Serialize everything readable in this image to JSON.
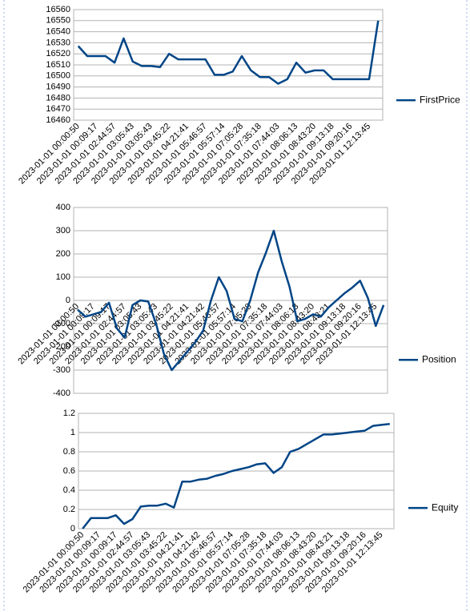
{
  "chart_data": [
    {
      "type": "line",
      "categories": [
        "2023-01-01 00:00:50",
        null,
        "2023-01-01 00:09:17",
        null,
        "2023-01-01 02:44:57",
        null,
        "2023-01-01 03:05:43",
        null,
        "2023-01-01 03:05:43",
        null,
        "2023-01-01 03:45:22",
        null,
        "2023-01-01 04:21:41",
        null,
        "2023-01-01 05:46:57",
        null,
        "2023-01-01 05:57:14",
        null,
        "2023-01-01 07:05:28",
        null,
        "2023-01-01 07:35:18",
        null,
        "2023-01-01 07:44:03",
        null,
        "2023-01-01 08:06:13",
        null,
        "2023-01-01 08:43:20",
        null,
        "2023-01-01 09:13:18",
        null,
        "2023-01-01 09:20:16",
        null,
        "2023-01-01 12:13:45",
        null
      ],
      "series": [
        {
          "name": "FirstPrice",
          "color": "#004586",
          "values": [
            16527,
            16518,
            16518,
            16518,
            16512,
            16534,
            16513,
            16509,
            16509,
            16508,
            16520,
            16515,
            16515,
            16515,
            16515,
            16501,
            16501,
            16504,
            16518,
            16505,
            16499,
            16499,
            16493,
            16497,
            16512,
            16503,
            16505,
            16505,
            16497,
            16497,
            16497,
            16497,
            16497,
            16550
          ]
        }
      ],
      "ylim": [
        16460,
        16560
      ],
      "yticks": [
        16460,
        16470,
        16480,
        16490,
        16500,
        16510,
        16520,
        16530,
        16540,
        16550,
        16560
      ],
      "grid": true,
      "legend": "right"
    },
    {
      "type": "line",
      "categories": [
        "2023-01-01 00:00:50",
        null,
        "2023-01-01 00:09:17",
        null,
        "2023-01-01 00:09:17",
        null,
        "2023-01-01 02:44:57",
        null,
        "2023-01-01 03:05:43",
        null,
        "2023-01-01 03:05:43",
        null,
        "2023-01-01 03:45:22",
        null,
        "2023-01-01 04:21:41",
        null,
        "2023-01-01 04:21:42",
        null,
        "2023-01-01 05:46:57",
        null,
        "2023-01-01 05:57:14",
        null,
        "2023-01-01 07:05:28",
        null,
        "2023-01-01 07:35:18",
        null,
        "2023-01-01 07:44:03",
        null,
        "2023-01-01 08:06:13",
        null,
        "2023-01-01 08:43:20",
        null,
        "2023-01-01 08:43:21",
        null,
        "2023-01-01 09:13:18",
        null,
        "2023-01-01 09:20:16",
        null,
        "2023-01-01 12:13:45",
        null
      ],
      "series": [
        {
          "name": "Position",
          "color": "#004586",
          "values": [
            -40,
            -70,
            -60,
            -50,
            -10,
            -120,
            -160,
            -20,
            0,
            -5,
            -100,
            -230,
            -300,
            -260,
            -220,
            -180,
            -130,
            0,
            100,
            40,
            -80,
            -90,
            0,
            120,
            205,
            300,
            170,
            60,
            -90,
            -80,
            -60,
            -70,
            -30,
            0,
            30,
            55,
            85,
            10,
            -110,
            -20
          ]
        }
      ],
      "ylim": [
        -400,
        400
      ],
      "yticks": [
        -400,
        -300,
        -200,
        -100,
        0,
        100,
        200,
        300,
        400
      ],
      "grid": true,
      "legend": "right"
    },
    {
      "type": "line",
      "categories": [
        "2023-01-01 00:00:50",
        null,
        "2023-01-01 00:09:17",
        null,
        "2023-01-01 00:09:17",
        null,
        "2023-01-01 02:44:57",
        null,
        "2023-01-01 03:05:43",
        null,
        "2023-01-01 03:45:22",
        null,
        "2023-01-01 04:21:41",
        null,
        "2023-01-01 04:21:42",
        null,
        "2023-01-01 05:46:57",
        null,
        "2023-01-01 05:57:14",
        null,
        "2023-01-01 07:05:28",
        null,
        "2023-01-01 07:35:18",
        null,
        "2023-01-01 07:44:03",
        null,
        "2023-01-01 08:06:13",
        null,
        "2023-01-01 08:43:20",
        null,
        "2023-01-01 08:43:21",
        null,
        "2023-01-01 09:13:18",
        null,
        "2023-01-01 09:20:16",
        null,
        "2023-01-01 12:13:45",
        null
      ],
      "series": [
        {
          "name": "Equity",
          "color": "#004586",
          "values": [
            0,
            0.11,
            0.11,
            0.11,
            0.14,
            0.05,
            0.1,
            0.23,
            0.24,
            0.24,
            0.26,
            0.22,
            0.49,
            0.49,
            0.51,
            0.52,
            0.55,
            0.57,
            0.6,
            0.62,
            0.64,
            0.67,
            0.68,
            0.58,
            0.64,
            0.8,
            0.83,
            0.88,
            0.93,
            0.98,
            0.98,
            0.99,
            1,
            1.01,
            1.02,
            1.07,
            1.08,
            1.09
          ]
        }
      ],
      "ylim": [
        0,
        1.2
      ],
      "yticks": [
        0,
        0.2,
        0.4,
        0.6,
        0.8,
        1,
        1.2
      ],
      "grid": true,
      "legend": "right"
    }
  ]
}
